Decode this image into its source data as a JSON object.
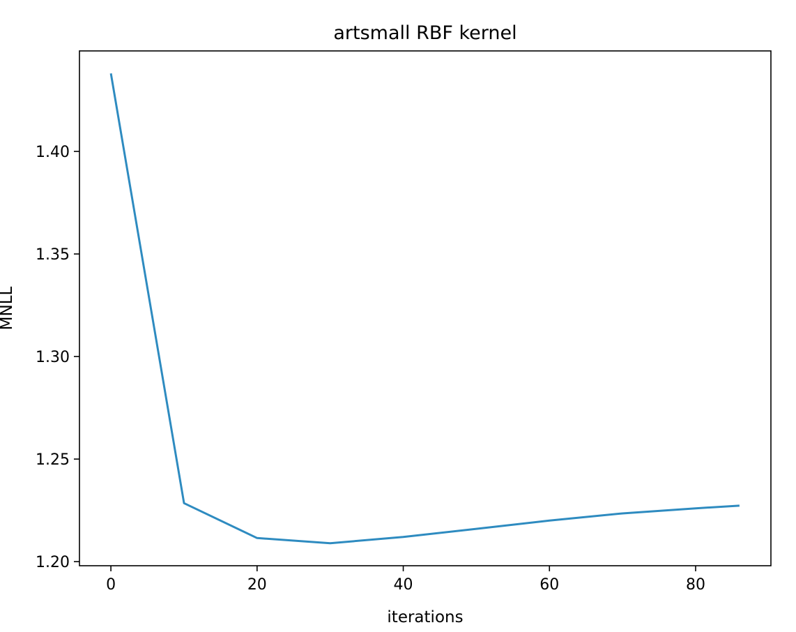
{
  "chart_data": {
    "type": "line",
    "title": "artsmall RBF kernel",
    "xlabel": "iterations",
    "ylabel": "MNLL",
    "xlim": [
      -4.3,
      90.3
    ],
    "ylim": [
      1.198,
      1.449
    ],
    "xticks": [
      0,
      20,
      40,
      60,
      80
    ],
    "xtick_labels": [
      "0",
      "20",
      "40",
      "60",
      "80"
    ],
    "yticks": [
      1.2,
      1.25,
      1.3,
      1.35,
      1.4
    ],
    "ytick_labels": [
      "1.20",
      "1.25",
      "1.30",
      "1.35",
      "1.40"
    ],
    "grid": false,
    "legend": "none",
    "series": [
      {
        "color": "#2e8bc0",
        "x": [
          0,
          10,
          20,
          30,
          40,
          50,
          60,
          70,
          80,
          86
        ],
        "y": [
          1.438,
          1.2285,
          1.2115,
          1.209,
          1.212,
          1.216,
          1.22,
          1.2235,
          1.226,
          1.2273
        ]
      }
    ]
  }
}
